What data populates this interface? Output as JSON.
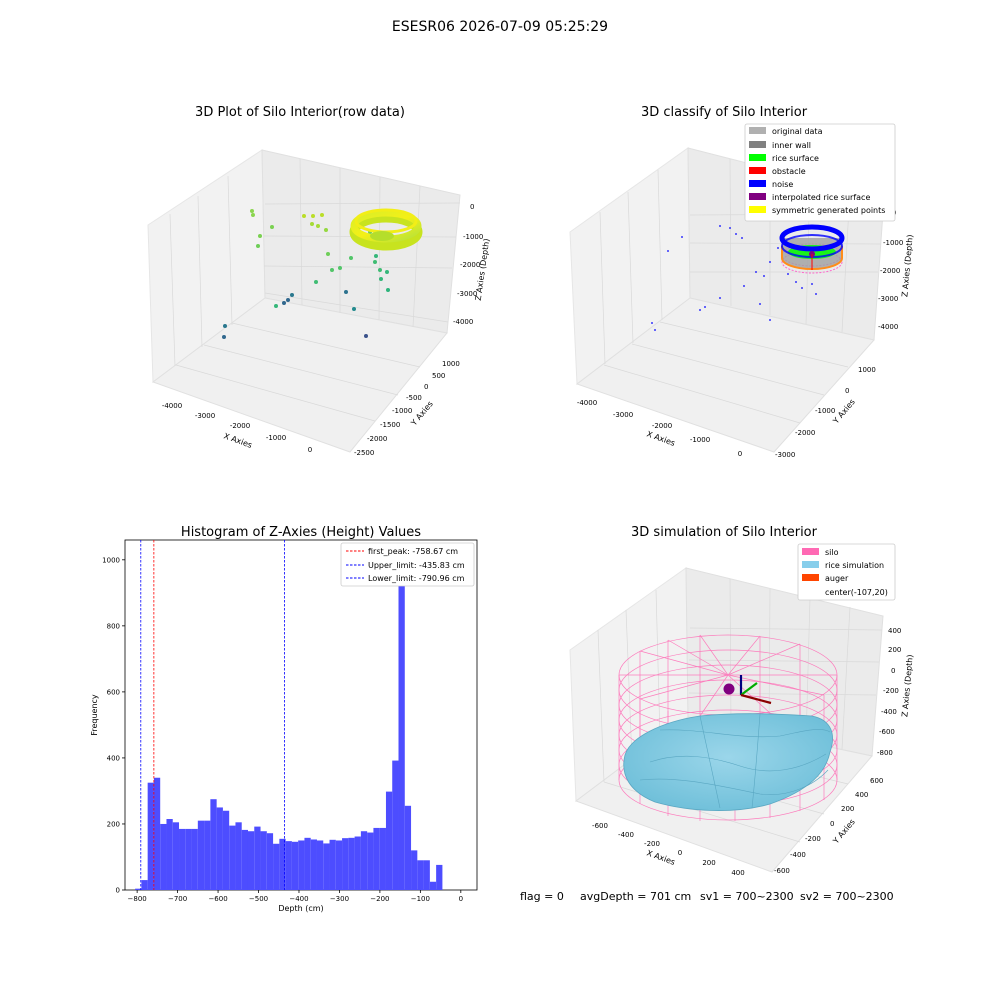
{
  "figure": {
    "title": "ESESR06 2026-07-09 05:25:29",
    "footer": {
      "flag": "flag = 0",
      "avg_depth": "avgDepth = 701 cm",
      "sv1": "sv1 = 700~2300",
      "sv2": "sv2 = 700~2300"
    }
  },
  "chart_data": [
    {
      "type": "scatter",
      "subtype": "3d-scatter",
      "title": "3D Plot of Silo Interior(row data)",
      "xlabel": "X Axies",
      "ylabel": "Y Axies",
      "zlabel": "Z Axies (Depth)",
      "x_ticks": [
        "-4000",
        "-3000",
        "-2000",
        "-1000",
        "0"
      ],
      "y_ticks": [
        "1000",
        "500",
        "0",
        "-500",
        "-1000",
        "-1500",
        "-2000",
        "-2500"
      ],
      "z_ticks": [
        "0",
        "-1000",
        "-2000",
        "-3000",
        "-4000"
      ],
      "colormap": "viridis",
      "ring": {
        "x_center": -750,
        "y_center": -750,
        "z": -1000
      }
    },
    {
      "type": "scatter",
      "subtype": "3d-scatter",
      "title": "3D classify of Silo Interior",
      "xlabel": "X Axies",
      "ylabel": "Y Axies",
      "zlabel": "Z Axies (Depth)",
      "x_ticks": [
        "-4000",
        "-3000",
        "-2000",
        "-1000",
        "0"
      ],
      "y_ticks": [
        "1000",
        "0",
        "-1000",
        "-2000",
        "-3000"
      ],
      "z_ticks": [
        "0",
        "-1000",
        "-2000",
        "-3000",
        "-4000"
      ],
      "legend_position": "top-right",
      "legend": [
        {
          "name": "original data",
          "color": "#b0b0b0"
        },
        {
          "name": "inner wall",
          "color": "#808080"
        },
        {
          "name": "rice surface",
          "color": "#00ff00"
        },
        {
          "name": "obstacle",
          "color": "#ff0000"
        },
        {
          "name": "noise",
          "color": "#0000ff"
        },
        {
          "name": "interpolated rice surface",
          "color": "#800080"
        },
        {
          "name": "symmetric generated points",
          "color": "#ffff00"
        }
      ]
    },
    {
      "type": "bar",
      "subtype": "histogram",
      "title": "Histogram of Z-Axies (Height) Values",
      "xlabel": "Depth (cm)",
      "ylabel": "Frequency",
      "xlim": [
        -830,
        40
      ],
      "ylim": [
        0,
        1060
      ],
      "x_ticks": [
        -800,
        -700,
        -600,
        -500,
        -400,
        -300,
        -200,
        -100,
        0
      ],
      "y_ticks": [
        0,
        200,
        400,
        600,
        800,
        1000
      ],
      "bar_color": "#4d4dff",
      "bin_start": -805,
      "bin_width": 15.5,
      "values": [
        4,
        30,
        325,
        340,
        200,
        215,
        205,
        185,
        185,
        185,
        210,
        210,
        275,
        250,
        240,
        195,
        205,
        182,
        178,
        192,
        178,
        172,
        140,
        155,
        148,
        146,
        150,
        158,
        153,
        150,
        141,
        152,
        150,
        157,
        158,
        162,
        178,
        174,
        188,
        188,
        298,
        392,
        1030,
        255,
        120,
        90,
        90,
        25,
        76
      ],
      "vlines": [
        {
          "label": "first_peak: -758.67 cm",
          "x": -758.67,
          "color": "#ff0000"
        },
        {
          "label": "Upper_limit: -435.83 cm",
          "x": -435.83,
          "color": "#0000ff"
        },
        {
          "label": "Lower_limit: -790.96 cm",
          "x": -790.96,
          "color": "#0000ff"
        }
      ],
      "legend_position": "top-right"
    },
    {
      "type": "area",
      "subtype": "3d-surface",
      "title": "3D simulation of Silo Interior",
      "xlabel": "X Axies",
      "ylabel": "Y Axies",
      "zlabel": "Z Axies (Depth)",
      "x_ticks": [
        "-600",
        "-400",
        "-200",
        "0",
        "200",
        "400"
      ],
      "y_ticks": [
        "600",
        "400",
        "200",
        "0",
        "-200",
        "-400",
        "-600"
      ],
      "z_ticks": [
        "400",
        "200",
        "0",
        "-200",
        "-400",
        "-600",
        "-800"
      ],
      "legend_position": "top-right",
      "legend": [
        {
          "name": "silo",
          "color": "#ff69b4"
        },
        {
          "name": "rice simulation",
          "color": "#87ceeb"
        },
        {
          "name": "auger",
          "color": "#ff4500"
        },
        {
          "name": "center(-107,20)",
          "color": ""
        }
      ]
    }
  ]
}
